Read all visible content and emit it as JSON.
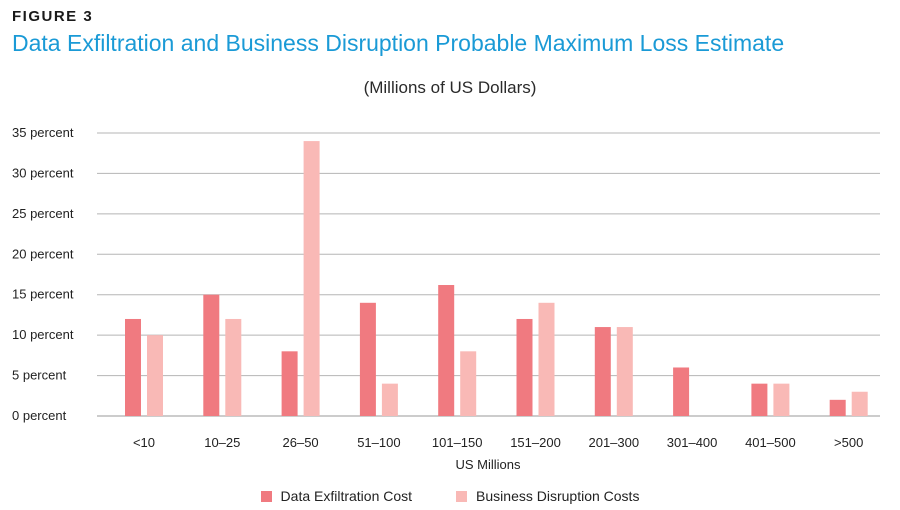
{
  "figure_label": "FIGURE 3",
  "chart_data": {
    "type": "bar",
    "title": "Data Exfiltration and Business Disruption Probable Maximum Loss Estimate",
    "subtitle": "(Millions of US Dollars)",
    "xlabel": "US Millions",
    "ylabel": "",
    "ylim": [
      0,
      35
    ],
    "yticks": [
      0,
      5,
      10,
      15,
      20,
      25,
      30,
      35
    ],
    "ytick_suffix": " percent",
    "grid": true,
    "legend_position": "bottom-center",
    "categories": [
      "<10",
      "10–25",
      "26–50",
      "51–100",
      "101–150",
      "151–200",
      "201–300",
      "301–400",
      "401–500",
      ">500"
    ],
    "series": [
      {
        "name": "Data Exfiltration Cost",
        "color": "#f07a80",
        "values": [
          12,
          15,
          8,
          14,
          16.2,
          12,
          11,
          6,
          4,
          2
        ]
      },
      {
        "name": "Business Disruption Costs",
        "color": "#f9b9b6",
        "values": [
          10,
          12,
          34,
          4,
          8,
          14,
          11,
          0,
          4,
          3
        ]
      }
    ]
  }
}
